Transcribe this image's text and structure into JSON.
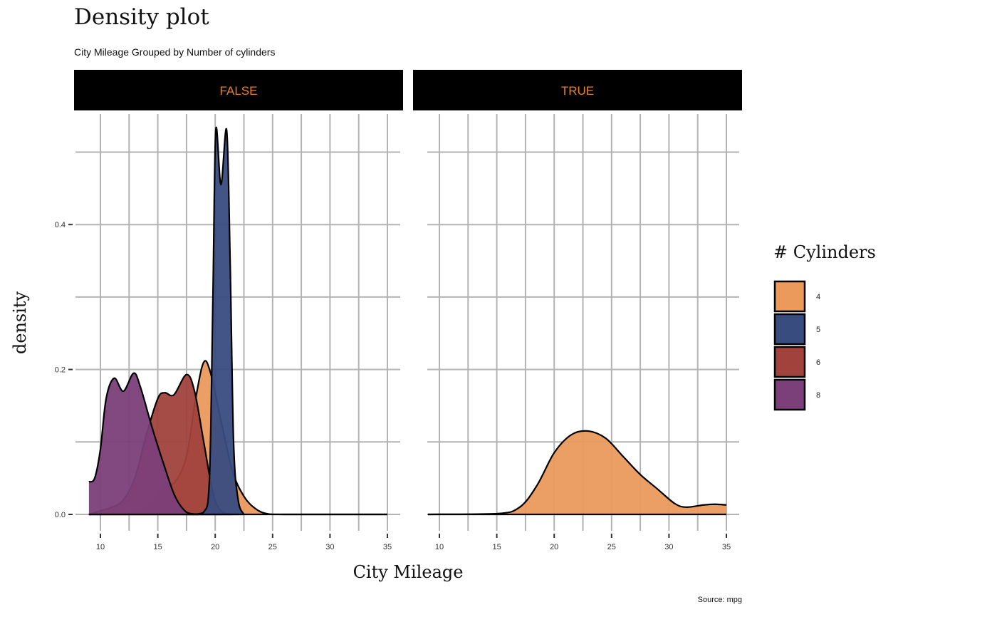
{
  "chart_data": {
    "type": "area",
    "title": "Density plot",
    "subtitle": "City Mileage Grouped by Number of cylinders",
    "caption": "Source: mpg",
    "xlabel": "City Mileage",
    "ylabel": "density",
    "xlim": [
      9,
      35
    ],
    "ylim": [
      0,
      0.55
    ],
    "x_ticks": [
      "10",
      "15",
      "20",
      "25",
      "30",
      "35"
    ],
    "y_ticks": [
      "0.0",
      "0.2",
      "0.4"
    ],
    "grid": true,
    "legend": {
      "title": "# Cylinders",
      "position": "right",
      "entries": [
        {
          "label": "4",
          "color": "#eb9a5c"
        },
        {
          "label": "5",
          "color": "#384c80"
        },
        {
          "label": "6",
          "color": "#a1423d"
        },
        {
          "label": "8",
          "color": "#7b3f7a"
        }
      ]
    },
    "facets": [
      {
        "label": "FALSE",
        "series": [
          {
            "name": "4",
            "color": "#eb9a5c",
            "points": [
              [
                9,
                0
              ],
              [
                12,
                0.002
              ],
              [
                14,
                0.01
              ],
              [
                15.5,
                0.04
              ],
              [
                16.5,
                0.045
              ],
              [
                17.5,
                0.08
              ],
              [
                18.3,
                0.16
              ],
              [
                19,
                0.21
              ],
              [
                19.6,
                0.195
              ],
              [
                20.5,
                0.13
              ],
              [
                21.5,
                0.06
              ],
              [
                22.5,
                0.025
              ],
              [
                23.5,
                0.008
              ],
              [
                24.5,
                0.001
              ],
              [
                26,
                0
              ],
              [
                35,
                0
              ]
            ]
          },
          {
            "name": "6",
            "color": "#a1423d",
            "points": [
              [
                9,
                0
              ],
              [
                10,
                0.005
              ],
              [
                11,
                0.01
              ],
              [
                12,
                0.02
              ],
              [
                13,
                0.05
              ],
              [
                14,
                0.11
              ],
              [
                15,
                0.16
              ],
              [
                15.6,
                0.168
              ],
              [
                16.4,
                0.165
              ],
              [
                17.5,
                0.193
              ],
              [
                18.2,
                0.17
              ],
              [
                19,
                0.1
              ],
              [
                19.8,
                0.03
              ],
              [
                20.5,
                0.005
              ],
              [
                21.5,
                0
              ]
            ]
          },
          {
            "name": "8",
            "color": "#7b3f7a",
            "points": [
              [
                9,
                0.045
              ],
              [
                9.5,
                0.05
              ],
              [
                10,
                0.09
              ],
              [
                10.5,
                0.16
              ],
              [
                11.2,
                0.188
              ],
              [
                12,
                0.17
              ],
              [
                12.9,
                0.195
              ],
              [
                13.5,
                0.175
              ],
              [
                14.5,
                0.12
              ],
              [
                15.5,
                0.07
              ],
              [
                16.5,
                0.025
              ],
              [
                17.5,
                0.003
              ],
              [
                18.5,
                0
              ]
            ]
          },
          {
            "name": "5",
            "color": "#384c80",
            "points": [
              [
                18,
                0
              ],
              [
                19,
                0.003
              ],
              [
                19.5,
                0.05
              ],
              [
                19.8,
                0.3
              ],
              [
                20.05,
                0.53
              ],
              [
                20.5,
                0.455
              ],
              [
                21,
                0.53
              ],
              [
                21.3,
                0.35
              ],
              [
                21.6,
                0.1
              ],
              [
                22,
                0.02
              ],
              [
                22.5,
                0
              ]
            ]
          }
        ]
      },
      {
        "label": "TRUE",
        "series": [
          {
            "name": "4",
            "color": "#eb9a5c",
            "points": [
              [
                9,
                0
              ],
              [
                15,
                0.001
              ],
              [
                17,
                0.01
              ],
              [
                18.5,
                0.04
              ],
              [
                20,
                0.085
              ],
              [
                21.5,
                0.11
              ],
              [
                23,
                0.115
              ],
              [
                24.5,
                0.105
              ],
              [
                26,
                0.08
              ],
              [
                27.5,
                0.055
              ],
              [
                29,
                0.035
              ],
              [
                30.5,
                0.015
              ],
              [
                31.5,
                0.01
              ],
              [
                33,
                0.013
              ],
              [
                34,
                0.014
              ],
              [
                35,
                0.013
              ]
            ]
          }
        ]
      }
    ]
  }
}
